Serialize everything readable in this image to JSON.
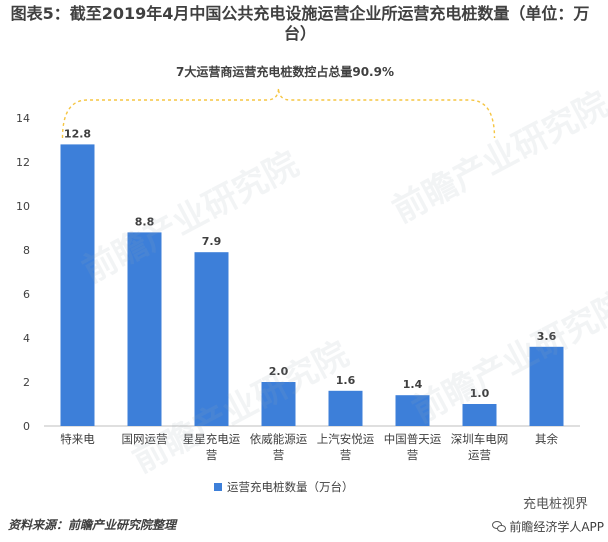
{
  "title": "图表5：截至2019年4月中国公共充电设施运营企业所运营充电桩数量（单位：万台）",
  "annotation": "7大运营商运营充电桩数控占总量90.9%",
  "source": "资料来源：前瞻产业研究院整理",
  "brand_top": "充电桩视界",
  "brand": "前瞻经济学人APP",
  "watermark_text": "前瞻产业研究院",
  "colors": {
    "bar": "#3d7fd9",
    "axis": "#bfbfbf",
    "text": "#404040",
    "bracket": "#f5c542"
  },
  "chart_data": {
    "type": "bar",
    "categories": [
      "特来电",
      "国网运营",
      "星星充电运营",
      "依威能源运营",
      "上汽安悦运营",
      "中国普天运营",
      "深圳车电网运营",
      "其余"
    ],
    "category_lines": [
      [
        "特来电"
      ],
      [
        "国网运营"
      ],
      [
        "星星充电运",
        "营"
      ],
      [
        "依威能源运",
        "营"
      ],
      [
        "上汽安悦运",
        "营"
      ],
      [
        "中国普天运",
        "营"
      ],
      [
        "深圳车电网",
        "运营"
      ],
      [
        "其余"
      ]
    ],
    "series": [
      {
        "name": "运营充电桩数量（万台）",
        "values": [
          12.8,
          8.8,
          7.9,
          2.0,
          1.6,
          1.4,
          1.0,
          3.6
        ]
      }
    ],
    "value_labels": [
      "12.8",
      "8.8",
      "7.9",
      "2.0",
      "1.6",
      "1.4",
      "1.0",
      "3.6"
    ],
    "ylim": [
      0,
      14
    ],
    "yticks": [
      "0",
      "2",
      "4",
      "6",
      "8",
      "10",
      "12",
      "14"
    ],
    "ytick_values": [
      0,
      2,
      4,
      6,
      8,
      10,
      12,
      14
    ],
    "legend_position": "bottom",
    "grid": false
  }
}
